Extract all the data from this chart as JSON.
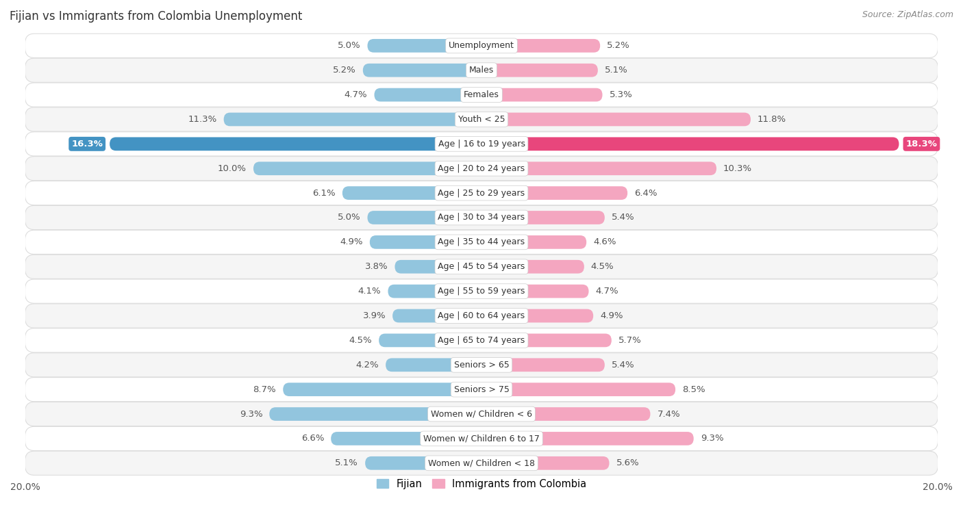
{
  "title": "Fijian vs Immigrants from Colombia Unemployment",
  "source": "Source: ZipAtlas.com",
  "categories": [
    "Unemployment",
    "Males",
    "Females",
    "Youth < 25",
    "Age | 16 to 19 years",
    "Age | 20 to 24 years",
    "Age | 25 to 29 years",
    "Age | 30 to 34 years",
    "Age | 35 to 44 years",
    "Age | 45 to 54 years",
    "Age | 55 to 59 years",
    "Age | 60 to 64 years",
    "Age | 65 to 74 years",
    "Seniors > 65",
    "Seniors > 75",
    "Women w/ Children < 6",
    "Women w/ Children 6 to 17",
    "Women w/ Children < 18"
  ],
  "fijian": [
    5.0,
    5.2,
    4.7,
    11.3,
    16.3,
    10.0,
    6.1,
    5.0,
    4.9,
    3.8,
    4.1,
    3.9,
    4.5,
    4.2,
    8.7,
    9.3,
    6.6,
    5.1
  ],
  "colombia": [
    5.2,
    5.1,
    5.3,
    11.8,
    18.3,
    10.3,
    6.4,
    5.4,
    4.6,
    4.5,
    4.7,
    4.9,
    5.7,
    5.4,
    8.5,
    7.4,
    9.3,
    5.6
  ],
  "fijian_color": "#92c5de",
  "colombia_color": "#f4a6c0",
  "highlight_fijian_color": "#4393c3",
  "highlight_colombia_color": "#e8467c",
  "background_color": "#ffffff",
  "row_light": "#ffffff",
  "row_dark": "#f5f5f5",
  "row_border": "#dddddd",
  "xlim": 20.0,
  "bar_height": 0.55,
  "label_fontsize": 9.5,
  "category_fontsize": 9.0,
  "title_fontsize": 12,
  "source_fontsize": 9
}
